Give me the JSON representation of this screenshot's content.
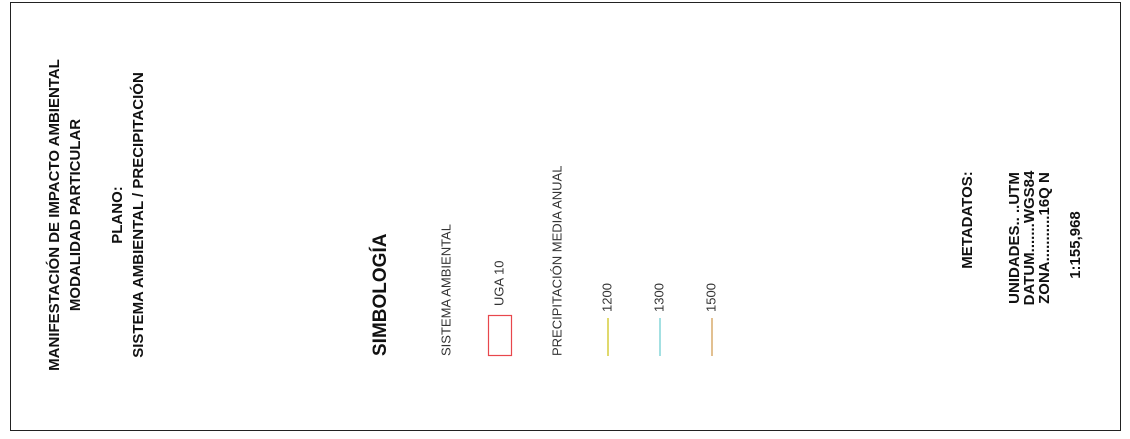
{
  "header": {
    "title_line1": "MANIFESTACIÓN DE IMPACTO AMBIENTAL",
    "title_line2": "MODALIDAD PARTICULAR",
    "plan_label": "PLANO:",
    "plan_name": "SISTEMA AMBIENTAL / PRECIPITACIÓN"
  },
  "legend": {
    "title": "SIMBOLOGÍA",
    "groups": [
      {
        "name": "SISTEMA AMBIENTAL",
        "items": [
          {
            "label": "UGA 10",
            "color": "#e8474c"
          }
        ]
      },
      {
        "name": "PRECIPITACIÓN MEDIA ANUAL",
        "items": [
          {
            "label": "1200",
            "color": "#d6cc3c"
          },
          {
            "label": "1300",
            "color": "#84d6d8"
          },
          {
            "label": "1500",
            "color": "#d9aa6c"
          }
        ]
      }
    ]
  },
  "metadata": {
    "title": "METADATOS:",
    "lines": [
      "UNIDADES.. ..UTM",
      "DATUM.......WGS84",
      "ZONA...........16Q N"
    ],
    "scale": "1:155,968"
  }
}
